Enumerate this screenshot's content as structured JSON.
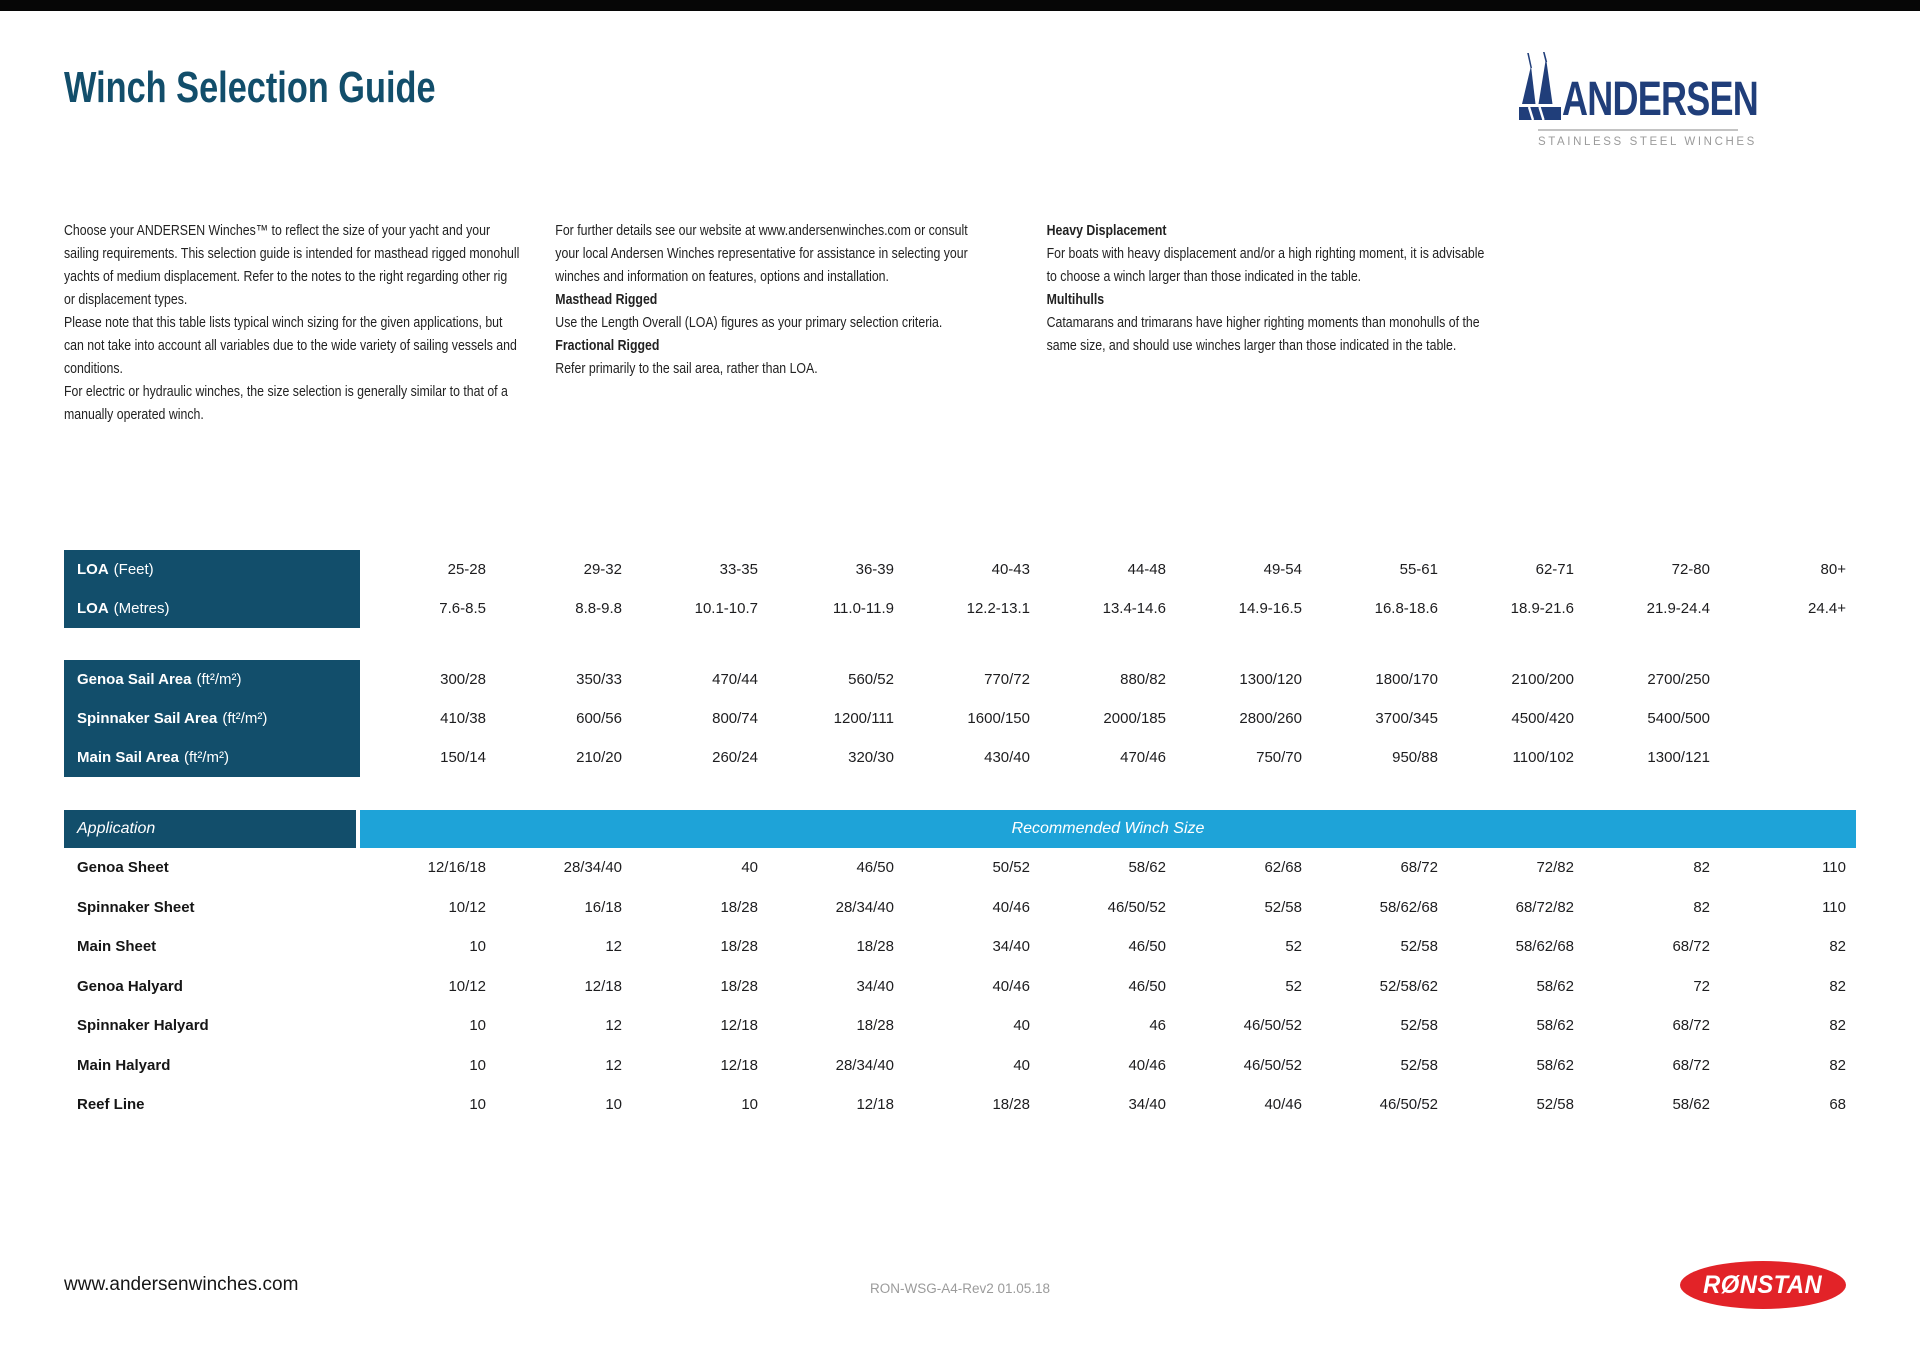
{
  "header": {
    "title": "Winch Selection Guide",
    "brand": "ANDERSEN",
    "tagline": "STAINLESS STEEL WINCHES"
  },
  "intro": {
    "col1_p1": "Choose your ANDERSEN Winches™ to reflect the size of your yacht and your sailing requirements. This selection guide is intended for masthead rigged monohull yachts of medium displacement. Refer to the notes to the right regarding other rig or displacement types.",
    "col1_p2": "Please note that this table lists typical winch sizing for the given applications, but can not take into account all variables due to the wide variety of sailing vessels and conditions.",
    "col1_p3": "For electric or hydraulic winches, the size selection is generally similar to that of a manually operated winch.",
    "col2_p1": "For further details see our website at www.andersenwinches.com or consult your local Andersen Winches representative for assistance in selecting your winches and information on features, options and installation.",
    "col2_h1": "Masthead Rigged",
    "col2_b1": "Use the Length Overall (LOA) figures as your primary selection criteria.",
    "col2_h2": "Fractional Rigged",
    "col2_b2": "Refer primarily to the sail area, rather than LOA.",
    "col3_h1": "Heavy Displacement",
    "col3_b1": "For boats with heavy displacement and/or a high righting moment, it is advisable to choose a winch larger than those indicated in the table.",
    "col3_h2": "Multihulls",
    "col3_b2": "Catamarans and trimarans have higher righting moments than monohulls of the same size, and should use winches larger than those indicated in the table."
  },
  "loa_table": {
    "rows": [
      {
        "label": "LOA",
        "unit": "(Feet)",
        "values": [
          "25-28",
          "29-32",
          "33-35",
          "36-39",
          "40-43",
          "44-48",
          "49-54",
          "55-61",
          "62-71",
          "72-80",
          "80+"
        ]
      },
      {
        "label": "LOA",
        "unit": "(Metres)",
        "values": [
          "7.6-8.5",
          "8.8-9.8",
          "10.1-10.7",
          "11.0-11.9",
          "12.2-13.1",
          "13.4-14.6",
          "14.9-16.5",
          "16.8-18.6",
          "18.9-21.6",
          "21.9-24.4",
          "24.4+"
        ]
      }
    ]
  },
  "sail_table": {
    "rows": [
      {
        "label": "Genoa Sail Area",
        "unit": "(ft²/m²)",
        "values": [
          "300/28",
          "350/33",
          "470/44",
          "560/52",
          "770/72",
          "880/82",
          "1300/120",
          "1800/170",
          "2100/200",
          "2700/250",
          ""
        ]
      },
      {
        "label": "Spinnaker Sail Area",
        "unit": "(ft²/m²)",
        "values": [
          "410/38",
          "600/56",
          "800/74",
          "1200/111",
          "1600/150",
          "2000/185",
          "2800/260",
          "3700/345",
          "4500/420",
          "5400/500",
          ""
        ]
      },
      {
        "label": "Main Sail Area",
        "unit": "(ft²/m²)",
        "values": [
          "150/14",
          "210/20",
          "260/24",
          "320/30",
          "430/40",
          "470/46",
          "750/70",
          "950/88",
          "1100/102",
          "1300/121",
          ""
        ]
      }
    ]
  },
  "app_table": {
    "header_label": "Application",
    "header_span": "Recommended Winch Size",
    "rows": [
      {
        "label": "Genoa Sheet",
        "values": [
          "12/16/18",
          "28/34/40",
          "40",
          "46/50",
          "50/52",
          "58/62",
          "62/68",
          "68/72",
          "72/82",
          "82",
          "110"
        ]
      },
      {
        "label": "Spinnaker Sheet",
        "values": [
          "10/12",
          "16/18",
          "18/28",
          "28/34/40",
          "40/46",
          "46/50/52",
          "52/58",
          "58/62/68",
          "68/72/82",
          "82",
          "110"
        ]
      },
      {
        "label": "Main Sheet",
        "values": [
          "10",
          "12",
          "18/28",
          "18/28",
          "34/40",
          "46/50",
          "52",
          "52/58",
          "58/62/68",
          "68/72",
          "82"
        ]
      },
      {
        "label": "Genoa Halyard",
        "values": [
          "10/12",
          "12/18",
          "18/28",
          "34/40",
          "40/46",
          "46/50",
          "52",
          "52/58/62",
          "58/62",
          "72",
          "82"
        ]
      },
      {
        "label": "Spinnaker Halyard",
        "values": [
          "10",
          "12",
          "12/18",
          "18/28",
          "40",
          "46",
          "46/50/52",
          "52/58",
          "58/62",
          "68/72",
          "82"
        ]
      },
      {
        "label": "Main Halyard",
        "values": [
          "10",
          "12",
          "12/18",
          "28/34/40",
          "40",
          "40/46",
          "46/50/52",
          "52/58",
          "58/62",
          "68/72",
          "82"
        ]
      },
      {
        "label": "Reef Line",
        "values": [
          "10",
          "10",
          "10",
          "12/18",
          "18/28",
          "34/40",
          "40/46",
          "46/50/52",
          "52/58",
          "58/62",
          "68"
        ]
      }
    ]
  },
  "footer": {
    "website": "www.andersenwinches.com",
    "doc_ref": "RON-WSG-A4-Rev2 01.05.18",
    "ronstan": "RØNSTAN"
  },
  "colors": {
    "header_dark": "#124e6b",
    "header_blue": "#1ea3d8",
    "brand_navy": "#203e7a",
    "ronstan_red": "#e22328",
    "tagline_gray": "#9b9b9b",
    "title_blue": "#124e6b"
  }
}
